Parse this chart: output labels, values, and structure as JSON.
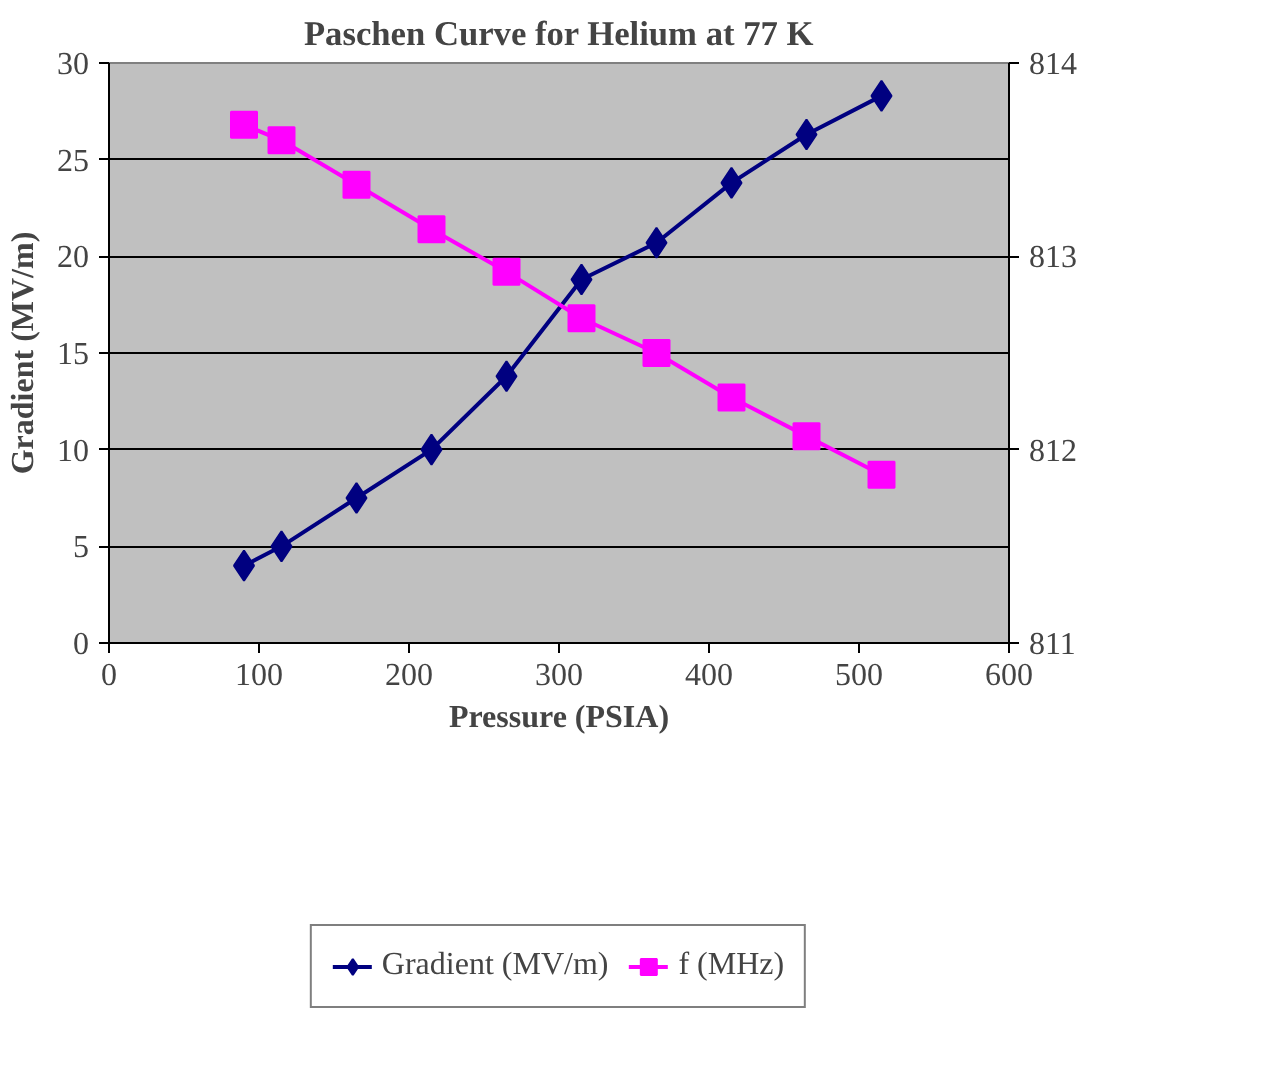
{
  "chart_data": {
    "type": "line",
    "title": "Paschen Curve for Helium at 77 K",
    "xlabel": "Pressure (PSIA)",
    "ylabel": "Gradient (MV/m)",
    "x": [
      90,
      115,
      165,
      215,
      265,
      315,
      365,
      415,
      465,
      515
    ],
    "series": [
      {
        "name": "Gradient (MV/m)",
        "color": "#000080",
        "marker": "diamond",
        "values": [
          4,
          5,
          7.5,
          10,
          13.8,
          18.8,
          20.7,
          23.8,
          26.3,
          28.3
        ]
      },
      {
        "name": "f (MHz)",
        "color": "#ff00ff",
        "marker": "square",
        "axis": "y2",
        "values": [
          813.68,
          813.6,
          813.37,
          813.14,
          812.92,
          812.68,
          812.5,
          812.27,
          812.07,
          811.87
        ]
      }
    ],
    "xlim": [
      0,
      600
    ],
    "xticks": [
      0,
      100,
      200,
      300,
      400,
      500,
      600
    ],
    "ylim": [
      0,
      30
    ],
    "yticks": [
      0,
      5,
      10,
      15,
      20,
      25,
      30
    ],
    "y2lim": [
      811,
      814
    ],
    "y2ticks": [
      811,
      812,
      813,
      814
    ],
    "grid": "y",
    "legend": "bottom"
  }
}
